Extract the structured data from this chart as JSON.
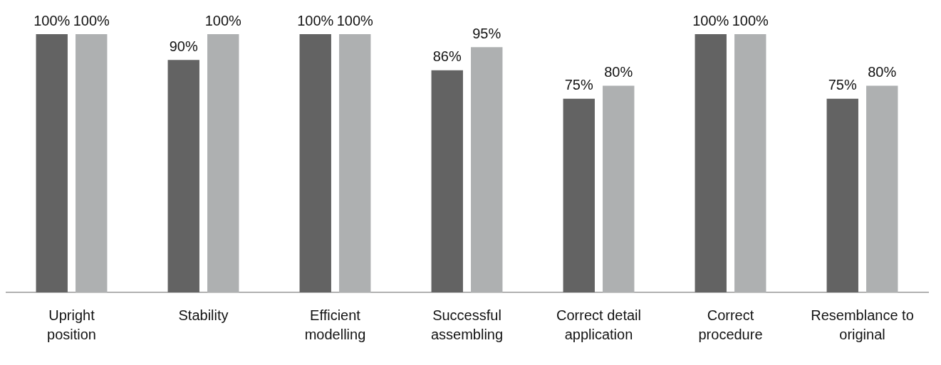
{
  "chart_data": {
    "type": "bar",
    "categories": [
      "Upright position",
      "Stability",
      "Efficient modelling",
      "Successful assembling",
      "Correct detail application",
      "Correct procedure",
      "Resemblance to original"
    ],
    "series": [
      {
        "color": "#636363",
        "values": [
          100,
          90,
          100,
          86,
          75,
          100,
          75
        ],
        "value_labels": [
          "100%",
          "90%",
          "100%",
          "86%",
          "75%",
          "100%",
          "75%"
        ]
      },
      {
        "color": "#aeb0b1",
        "values": [
          100,
          100,
          100,
          95,
          80,
          100,
          80
        ],
        "value_labels": [
          "100%",
          "100%",
          "100%",
          "95%",
          "80%",
          "100%",
          "80%"
        ]
      }
    ],
    "ylim": [
      0,
      100
    ],
    "tick_labels": "x",
    "grid": false,
    "legend": false
  }
}
